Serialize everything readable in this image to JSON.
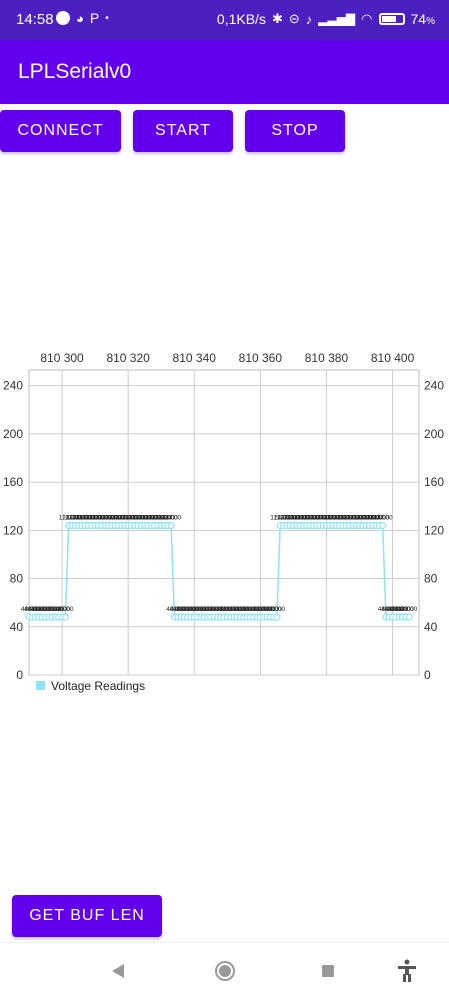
{
  "status_bar": {
    "time": "14:58",
    "net_speed": "0,1KB/s",
    "battery": "74",
    "battery_suffix": "%",
    "battery_level": 0.74
  },
  "app": {
    "title": "LPLSerialv0"
  },
  "buttons": {
    "connect": "CONNECT",
    "start": "START",
    "stop": "STOP",
    "get_buf_len": "GET BUF LEN"
  },
  "colors": {
    "primary": "#6200ee",
    "status_bar": "#4b1fc0",
    "series": "#8fe3f5"
  },
  "chart_data": {
    "type": "line",
    "x_ticks": [
      "810 300",
      "810 320",
      "810 340",
      "810 360",
      "810 380",
      "810 400"
    ],
    "x_tick_values": [
      810300,
      810320,
      810340,
      810360,
      810380,
      810400
    ],
    "y_ticks": [
      0,
      40,
      80,
      120,
      160,
      200,
      240
    ],
    "xlim": [
      810290,
      810408
    ],
    "ylim": [
      0,
      253
    ],
    "grid": true,
    "legend_position": "bottom-left",
    "series": [
      {
        "name": "Voltage Readings",
        "segments": [
          {
            "x_start": 810290,
            "x_end": 810301,
            "y": 48,
            "label": "48.00"
          },
          {
            "x_start": 810302,
            "x_end": 810333,
            "y": 124,
            "label": "124.00"
          },
          {
            "x_start": 810334,
            "x_end": 810365,
            "y": 48,
            "label": "48.00"
          },
          {
            "x_start": 810366,
            "x_end": 810397,
            "y": 124,
            "label": "124.00"
          },
          {
            "x_start": 810398,
            "x_end": 810405,
            "y": 48,
            "label": "48.00"
          }
        ]
      }
    ]
  },
  "nav": {
    "back": "back-icon",
    "home": "home-icon",
    "recents": "recents-icon",
    "accessibility": "accessibility-icon"
  }
}
